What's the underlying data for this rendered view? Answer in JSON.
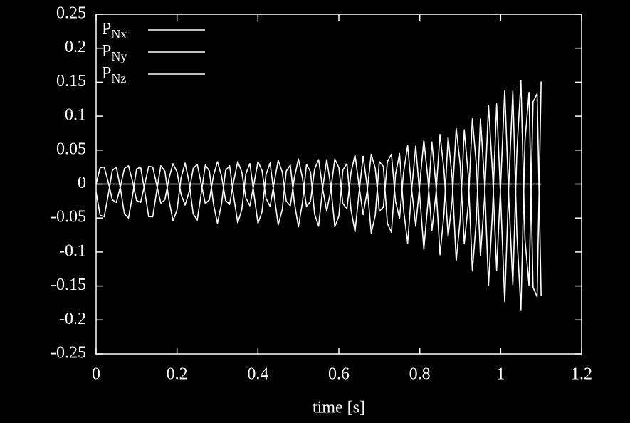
{
  "chart_data": {
    "type": "line",
    "xlabel": "time [s]",
    "xlim": [
      0,
      1.2
    ],
    "xticks": [
      0,
      0.2,
      0.4,
      0.6,
      0.8,
      1,
      1.2
    ],
    "ylim": [
      -0.25,
      0.25
    ],
    "yticks": [
      -0.25,
      -0.2,
      -0.15,
      -0.1,
      -0.05,
      0,
      0.05,
      0.1,
      0.15,
      0.2,
      0.25
    ],
    "background": "#000000",
    "legend": "top-left",
    "x": [
      0,
      0.01,
      0.02,
      0.03,
      0.04,
      0.05,
      0.06,
      0.07,
      0.08,
      0.09,
      0.1,
      0.11,
      0.12,
      0.13,
      0.14,
      0.15,
      0.16,
      0.17,
      0.18,
      0.19,
      0.2,
      0.21,
      0.22,
      0.23,
      0.24,
      0.25,
      0.26,
      0.27,
      0.28,
      0.29,
      0.3,
      0.31,
      0.32,
      0.33,
      0.34,
      0.35,
      0.36,
      0.37,
      0.38,
      0.39,
      0.4,
      0.41,
      0.42,
      0.43,
      0.44,
      0.45,
      0.46,
      0.47,
      0.48,
      0.49,
      0.5,
      0.51,
      0.52,
      0.53,
      0.54,
      0.55,
      0.56,
      0.57,
      0.58,
      0.59,
      0.6,
      0.61,
      0.62,
      0.63,
      0.64,
      0.65,
      0.66,
      0.67,
      0.68,
      0.69,
      0.7,
      0.71,
      0.72,
      0.73,
      0.74,
      0.75,
      0.76,
      0.77,
      0.78,
      0.79,
      0.8,
      0.81,
      0.82,
      0.83,
      0.84,
      0.85,
      0.86,
      0.87,
      0.88,
      0.89,
      0.9,
      0.91,
      0.92,
      0.93,
      0.94,
      0.95,
      0.96,
      0.97,
      0.98,
      0.99,
      1,
      1.01,
      1.02,
      1.03,
      1.04,
      1.05,
      1.06,
      1.07,
      1.08,
      1.09,
      1.1
    ],
    "series": [
      {
        "name": "P",
        "subscript": "Nx",
        "color": "#ffffff",
        "values": [
          -0.012,
          -0.046,
          -0.048,
          -0.016,
          0.02,
          0.025,
          -0.006,
          -0.044,
          -0.05,
          -0.017,
          0.022,
          0.025,
          -0.01,
          -0.048,
          -0.048,
          -0.009,
          0.027,
          0.019,
          -0.023,
          -0.054,
          -0.038,
          0.009,
          0.031,
          0.002,
          -0.044,
          -0.053,
          -0.013,
          0.028,
          0.019,
          -0.029,
          -0.058,
          -0.029,
          0.02,
          0.027,
          -0.018,
          -0.057,
          -0.038,
          0.015,
          0.03,
          -0.014,
          -0.058,
          -0.041,
          0.014,
          0.031,
          -0.016,
          -0.06,
          -0.038,
          0.019,
          0.028,
          -0.027,
          -0.063,
          -0.027,
          0.029,
          0.018,
          -0.044,
          -0.062,
          -0.006,
          0.036,
          -0.003,
          -0.063,
          -0.047,
          0.021,
          0.03,
          -0.038,
          -0.07,
          -0.012,
          0.041,
          -0.004,
          -0.072,
          -0.046,
          0.033,
          0.026,
          -0.058,
          -0.071,
          0.014,
          0.045,
          -0.038,
          -0.087,
          -0.008,
          0.056,
          -0.018,
          -0.096,
          -0.028,
          0.062,
          -0.002,
          -0.104,
          -0.043,
          0.069,
          0.009,
          -0.113,
          -0.051,
          0.08,
          0.012,
          -0.128,
          -0.051,
          0.096,
          0.004,
          -0.149,
          -0.037,
          0.118,
          -0.022,
          -0.173,
          -0.001,
          0.137,
          -0.073,
          -0.186,
          0.063,
          0.135,
          -0.152,
          -0.166,
          0.151
        ]
      },
      {
        "name": "P",
        "subscript": "Ny",
        "color": "#ffffff",
        "values": [
          0,
          0.024,
          0.025,
          0.003,
          -0.023,
          -0.027,
          -0.004,
          0.023,
          0.027,
          0.004,
          -0.024,
          -0.027,
          -0.001,
          0.026,
          0.025,
          -0.002,
          -0.028,
          -0.023,
          0.008,
          0.03,
          0.018,
          -0.015,
          -0.031,
          -0.011,
          0.023,
          0.029,
          0,
          -0.029,
          -0.023,
          0.012,
          0.033,
          0.012,
          -0.024,
          -0.03,
          0.004,
          0.033,
          0.018,
          -0.02,
          -0.032,
          0,
          0.033,
          0.02,
          -0.021,
          -0.033,
          0.002,
          0.035,
          0.018,
          -0.025,
          -0.032,
          0.009,
          0.037,
          0.009,
          -0.033,
          -0.025,
          0.022,
          0.036,
          -0.007,
          -0.04,
          -0.009,
          0.037,
          0.024,
          -0.029,
          -0.036,
          0.017,
          0.043,
          -0.003,
          -0.045,
          -0.01,
          0.044,
          0.023,
          -0.04,
          -0.034,
          0.033,
          0.044,
          -0.025,
          -0.051,
          0.017,
          0.057,
          -0.008,
          -0.062,
          0,
          0.065,
          0.008,
          -0.069,
          -0.014,
          0.073,
          0.02,
          -0.077,
          -0.025,
          0.082,
          0.028,
          -0.088,
          -0.029,
          0.096,
          0.027,
          -0.105,
          -0.022,
          0.116,
          0.014,
          -0.127,
          0,
          0.138,
          -0.02,
          -0.148,
          0.047,
          0.152,
          -0.081,
          -0.149,
          0.121,
          0.133,
          -0.165
        ]
      },
      {
        "name": "P",
        "subscript": "Nz",
        "color": "#ffffff",
        "values": [
          0,
          0,
          0,
          0,
          0,
          0,
          0,
          0,
          0,
          0,
          0,
          0,
          0,
          0,
          0,
          0,
          0,
          0,
          0,
          0,
          0,
          0,
          0,
          0,
          0,
          0,
          0,
          0,
          0,
          0,
          0,
          0,
          0,
          0,
          0,
          0,
          0,
          0,
          0,
          0,
          0,
          0,
          0,
          0,
          0,
          0,
          0,
          0,
          0,
          0,
          0,
          0,
          0,
          0,
          0,
          0,
          0,
          0,
          0,
          0,
          0,
          0,
          0,
          0,
          0,
          0,
          0,
          0,
          0,
          0,
          0,
          0,
          0,
          0,
          0,
          0,
          0,
          0,
          0,
          0,
          0,
          0,
          0,
          0,
          0,
          0,
          0,
          0,
          0,
          0,
          0,
          0,
          0,
          0,
          0,
          0,
          0,
          0,
          0,
          0,
          0,
          0,
          0,
          0,
          0,
          0,
          0,
          0,
          0,
          0,
          0
        ]
      }
    ]
  }
}
